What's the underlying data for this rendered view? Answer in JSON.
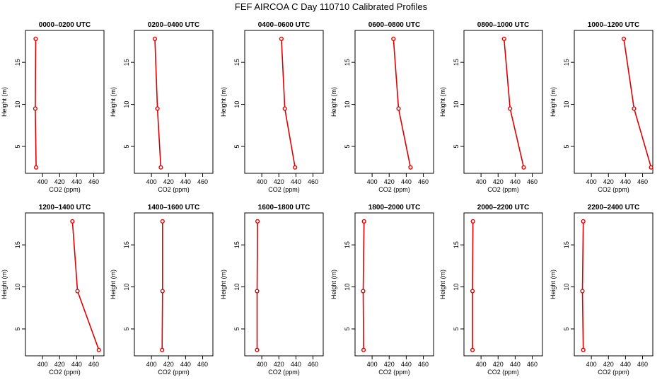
{
  "title": "FEF AIRCOA C  Day 110710  Calibrated Profiles",
  "chart_data": {
    "type": "line",
    "xlabel": "CO2 (ppm)",
    "ylabel": "Height (m)",
    "xlim": [
      380,
      472
    ],
    "ylim": [
      1.8,
      18.8
    ],
    "xticks": [
      400,
      420,
      440,
      460
    ],
    "yticks": [
      5,
      10,
      15
    ],
    "series_color": "#dd0000",
    "panels": [
      {
        "title": "0000–0200 UTC",
        "heights": [
          17.8,
          9.5,
          2.5
        ],
        "co2": [
          392,
          391.5,
          392.5
        ]
      },
      {
        "title": "0200–0400 UTC",
        "heights": [
          17.8,
          9.5,
          2.5
        ],
        "co2": [
          404,
          407,
          411
        ]
      },
      {
        "title": "0400–0600 UTC",
        "heights": [
          17.8,
          9.5,
          2.5
        ],
        "co2": [
          423,
          427,
          439
        ]
      },
      {
        "title": "0600–0800 UTC",
        "heights": [
          17.8,
          9.5,
          2.5
        ],
        "co2": [
          425,
          431,
          445
        ]
      },
      {
        "title": "0800–1000 UTC",
        "heights": [
          17.8,
          9.5,
          2.5
        ],
        "co2": [
          427,
          434,
          450
        ]
      },
      {
        "title": "1000–1200 UTC",
        "heights": [
          17.8,
          9.5,
          2.5
        ],
        "co2": [
          438,
          450,
          470
        ]
      },
      {
        "title": "1200–1400 UTC",
        "heights": [
          17.8,
          9.5,
          2.5
        ],
        "co2": [
          435,
          441,
          466
        ]
      },
      {
        "title": "1400–1600 UTC",
        "heights": [
          17.8,
          9.5,
          2.5
        ],
        "co2": [
          413,
          413,
          412.5
        ]
      },
      {
        "title": "1600–1800 UTC",
        "heights": [
          17.8,
          9.5,
          2.5
        ],
        "co2": [
          395,
          394.5,
          394.5
        ]
      },
      {
        "title": "1800–2000 UTC",
        "heights": [
          17.8,
          9.5,
          2.5
        ],
        "co2": [
          390.5,
          389.5,
          390
        ]
      },
      {
        "title": "2000–2200 UTC",
        "heights": [
          17.8,
          9.5,
          2.5
        ],
        "co2": [
          390.5,
          390,
          390
        ]
      },
      {
        "title": "2200–2400 UTC",
        "heights": [
          17.8,
          9.5,
          2.5
        ],
        "co2": [
          390.5,
          389.5,
          390.5
        ]
      }
    ]
  }
}
